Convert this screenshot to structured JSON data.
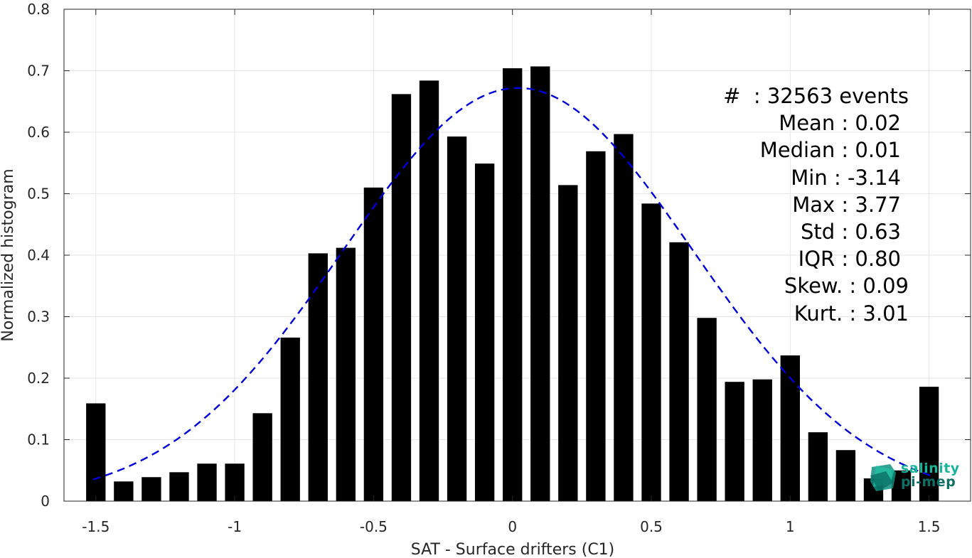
{
  "chart_data": {
    "type": "bar",
    "xlabel": "SAT - Surface drifters (C1)",
    "ylabel": "Normalized histogram",
    "xlim": [
      -1.6,
      1.6
    ],
    "ylim": [
      0,
      0.8
    ],
    "x_ticks": [
      "-1.5",
      "-1",
      "-0.5",
      "0",
      "0.5",
      "1",
      "1.5"
    ],
    "x_tick_values": [
      -1.5,
      -1,
      -0.5,
      0,
      0.5,
      1,
      1.5
    ],
    "y_ticks": [
      "0",
      "0.1",
      "0.2",
      "0.3",
      "0.4",
      "0.5",
      "0.6",
      "0.7",
      "0.8"
    ],
    "y_tick_values": [
      0,
      0.1,
      0.2,
      0.3,
      0.4,
      0.5,
      0.6,
      0.7,
      0.8
    ],
    "grid": true,
    "bar_color": "#000000",
    "x": [
      -1.5,
      -1.4,
      -1.3,
      -1.2,
      -1.1,
      -1.0,
      -0.9,
      -0.8,
      -0.7,
      -0.6,
      -0.5,
      -0.4,
      -0.3,
      -0.2,
      -0.1,
      0.0,
      0.1,
      0.2,
      0.3,
      0.4,
      0.5,
      0.6,
      0.7,
      0.8,
      0.9,
      1.0,
      1.1,
      1.2,
      1.3,
      1.4,
      1.5
    ],
    "values": [
      0.159,
      0.032,
      0.039,
      0.047,
      0.061,
      0.061,
      0.143,
      0.266,
      0.403,
      0.412,
      0.51,
      0.662,
      0.684,
      0.593,
      0.549,
      0.704,
      0.707,
      0.514,
      0.569,
      0.597,
      0.484,
      0.421,
      0.298,
      0.194,
      0.198,
      0.237,
      0.112,
      0.083,
      0.037,
      0.05,
      0.186
    ],
    "fit_curve": {
      "type": "gaussian",
      "mean": 0.02,
      "std": 0.63,
      "peak": 0.672,
      "color": "#0000dd",
      "style": "dashed"
    }
  },
  "stats": [
    {
      "label": "#  : ",
      "value": "32563 events"
    },
    {
      "label": "Mean : ",
      "value": "0.02"
    },
    {
      "label": "Median : ",
      "value": "0.01"
    },
    {
      "label": "Min : ",
      "value": "-3.14"
    },
    {
      "label": "Max : ",
      "value": "3.77"
    },
    {
      "label": "Std : ",
      "value": "0.63"
    },
    {
      "label": "IQR : ",
      "value": "0.80"
    },
    {
      "label": "Skew. : ",
      "value": "0.09"
    },
    {
      "label": "Kurt. : ",
      "value": "3.01"
    }
  ],
  "logo": {
    "line1": "salinity",
    "line2": "pi-mep",
    "color1": "#18b59a",
    "color2": "#0e6f66"
  }
}
